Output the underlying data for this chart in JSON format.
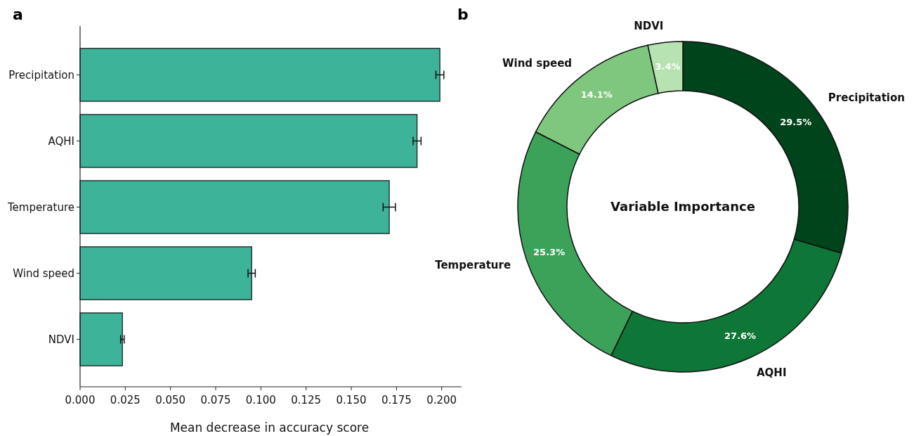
{
  "chart_data": [
    {
      "type": "bar",
      "orientation": "horizontal",
      "annotations": [
        "a"
      ],
      "xlabel": "Mean decrease in accuracy score",
      "categories": [
        "Precipitation",
        "AQHI",
        "Temperature",
        "Wind speed",
        "NDVI"
      ],
      "values": [
        0.199,
        0.1864,
        0.171,
        0.0949,
        0.0234
      ],
      "errors": [
        0.0022,
        0.0022,
        0.0034,
        0.002,
        0.001
      ],
      "color": "#3db39a",
      "xlim": [
        0,
        0.211
      ],
      "xticks": [
        {
          "value": 0,
          "label": "0.000"
        },
        0.025,
        {
          "value": 0.05,
          "label": "0.050"
        },
        0.075,
        {
          "value": 0.1,
          "label": "0.100"
        },
        0.125,
        {
          "value": 0.15,
          "label": "0.150"
        },
        0.175,
        {
          "value": 0.2,
          "label": "0.200"
        }
      ],
      "grid": false
    },
    {
      "type": "donut",
      "annotations": [
        "b"
      ],
      "title": "Variable Importance",
      "categories": [
        "Precipitation",
        "AQHI",
        "Temperature",
        "Wind speed",
        "NDVI"
      ],
      "values": [
        29.5,
        27.6,
        25.3,
        14.1,
        3.4
      ],
      "value_labels": [
        "29.5%",
        "27.6%",
        "25.3%",
        "14.1%",
        "3.4%"
      ],
      "colors": [
        "#00441b",
        "#0e7636",
        "#3ca25a",
        "#7fc77e",
        "#b7e2b1"
      ]
    }
  ]
}
